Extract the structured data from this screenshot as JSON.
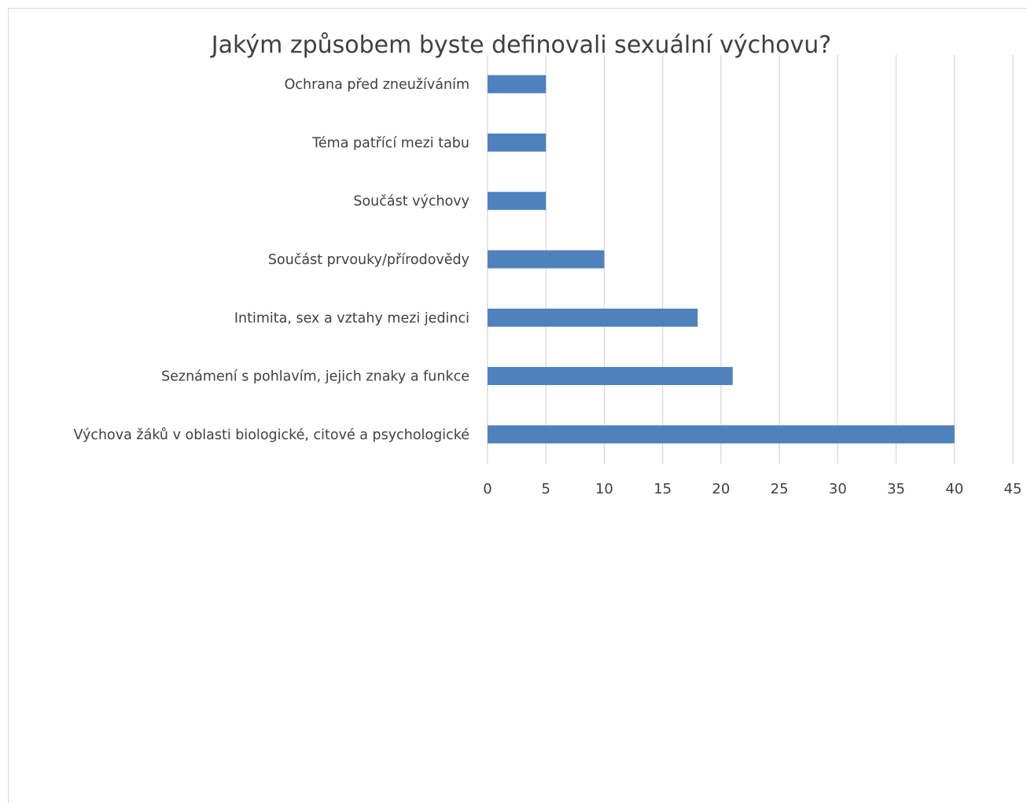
{
  "chart_data": {
    "type": "bar",
    "orientation": "horizontal",
    "title": "Jakým způsobem byste definovali sexuální výchovu?",
    "categories": [
      "Výchova žáků v oblasti biologické, citové a psychologické",
      "Seznámení s pohlavím, jejich znaky a funkce",
      "Intimita, sex a vztahy mezi jedinci",
      "Součást prvouky/přírodovědy",
      "Součást výchovy",
      "Téma patřící mezi tabu",
      "Ochrana před zneužíváním"
    ],
    "values": [
      40,
      21,
      18,
      10,
      5,
      5,
      5
    ],
    "xlim": [
      0,
      45
    ],
    "x_ticks": [
      "0",
      "5",
      "10",
      "15",
      "20",
      "25",
      "30",
      "35",
      "40",
      "45"
    ],
    "grid": "vertical",
    "bar_color": "#4f81bd",
    "grid_color": "#d9d9d9",
    "text_color": "#404040"
  }
}
